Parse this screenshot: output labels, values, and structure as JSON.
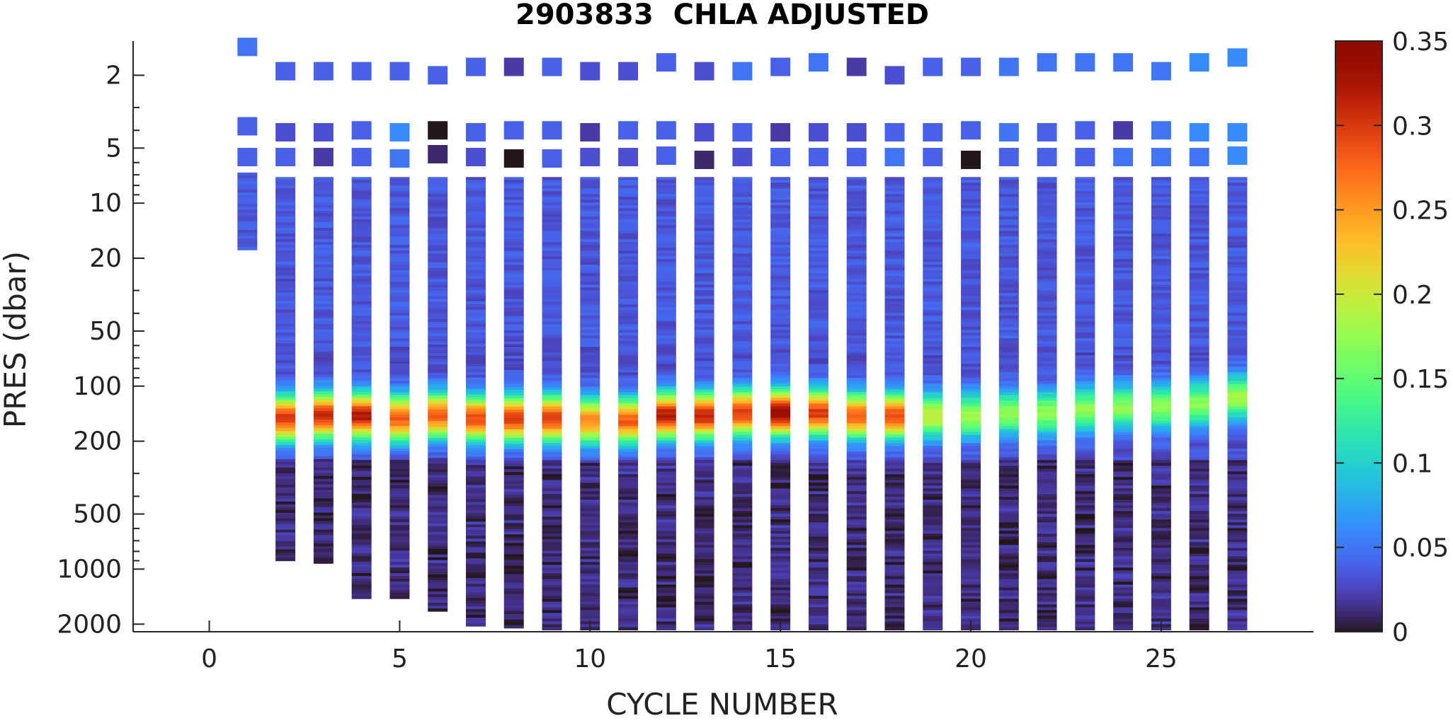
{
  "chart_data": {
    "type": "heatmap",
    "title": "2903833  CHLA ADJUSTED",
    "xlabel": "CYCLE NUMBER",
    "ylabel": "PRES (dbar)",
    "xlim": [
      -2,
      29
    ],
    "ylim": [
      1.3,
      2200
    ],
    "y_scale": "log-reversed",
    "x_ticks": [
      0,
      5,
      10,
      15,
      20,
      25
    ],
    "y_ticks": [
      2,
      5,
      10,
      20,
      50,
      100,
      200,
      500,
      1000,
      2000
    ],
    "colorbar": {
      "range": [
        0,
        0.35
      ],
      "ticks": [
        0,
        0.05,
        0.1,
        0.15,
        0.2,
        0.25,
        0.3,
        0.35
      ],
      "colormap": "turbo"
    },
    "grid": false,
    "cycles": [
      1,
      2,
      3,
      4,
      5,
      6,
      7,
      8,
      9,
      10,
      11,
      12,
      13,
      14,
      15,
      16,
      17,
      18,
      19,
      20,
      21,
      22,
      23,
      24,
      25,
      26,
      27
    ],
    "profile_max_pressure": [
      18,
      900,
      930,
      1450,
      1450,
      1700,
      2050,
      2100,
      2300,
      2300,
      2300,
      2300,
      2300,
      2300,
      2300,
      2300,
      2300,
      2300,
      2300,
      2300,
      2300,
      2300,
      2300,
      2300,
      2300,
      2300,
      2300
    ],
    "surface_samples": [
      {
        "cycle": 1,
        "points": [
          [
            1.4,
            0.05
          ],
          [
            3.8,
            0.04
          ],
          [
            5.6,
            0.04
          ]
        ]
      },
      {
        "cycle": 2,
        "points": [
          [
            1.9,
            0.04
          ],
          [
            4.1,
            0.03
          ],
          [
            5.6,
            0.04
          ]
        ]
      },
      {
        "cycle": 3,
        "points": [
          [
            1.9,
            0.04
          ],
          [
            4.1,
            0.03
          ],
          [
            5.6,
            0.02
          ]
        ]
      },
      {
        "cycle": 4,
        "points": [
          [
            1.9,
            0.04
          ],
          [
            4.0,
            0.04
          ],
          [
            5.6,
            0.04
          ]
        ]
      },
      {
        "cycle": 5,
        "points": [
          [
            1.9,
            0.04
          ],
          [
            4.1,
            0.06
          ],
          [
            5.7,
            0.05
          ]
        ]
      },
      {
        "cycle": 6,
        "points": [
          [
            2.0,
            0.04
          ],
          [
            4.0,
            0.0
          ],
          [
            5.4,
            0.01
          ]
        ]
      },
      {
        "cycle": 7,
        "points": [
          [
            1.8,
            0.04
          ],
          [
            4.1,
            0.04
          ],
          [
            5.6,
            0.03
          ]
        ]
      },
      {
        "cycle": 8,
        "points": [
          [
            1.8,
            0.02
          ],
          [
            4.0,
            0.04
          ],
          [
            5.7,
            0.0
          ]
        ]
      },
      {
        "cycle": 9,
        "points": [
          [
            1.8,
            0.04
          ],
          [
            4.0,
            0.04
          ],
          [
            5.7,
            0.04
          ]
        ]
      },
      {
        "cycle": 10,
        "points": [
          [
            1.9,
            0.03
          ],
          [
            4.1,
            0.02
          ],
          [
            5.6,
            0.03
          ]
        ]
      },
      {
        "cycle": 11,
        "points": [
          [
            1.9,
            0.03
          ],
          [
            4.0,
            0.04
          ],
          [
            5.6,
            0.03
          ]
        ]
      },
      {
        "cycle": 12,
        "points": [
          [
            1.7,
            0.04
          ],
          [
            4.0,
            0.04
          ],
          [
            5.5,
            0.04
          ]
        ]
      },
      {
        "cycle": 13,
        "points": [
          [
            1.9,
            0.03
          ],
          [
            4.1,
            0.03
          ],
          [
            5.8,
            0.01
          ]
        ]
      },
      {
        "cycle": 14,
        "points": [
          [
            1.9,
            0.05
          ],
          [
            4.1,
            0.04
          ],
          [
            5.6,
            0.03
          ]
        ]
      },
      {
        "cycle": 15,
        "points": [
          [
            1.8,
            0.04
          ],
          [
            4.1,
            0.02
          ],
          [
            5.6,
            0.04
          ]
        ]
      },
      {
        "cycle": 16,
        "points": [
          [
            1.7,
            0.05
          ],
          [
            4.1,
            0.03
          ],
          [
            5.6,
            0.04
          ]
        ]
      },
      {
        "cycle": 17,
        "points": [
          [
            1.8,
            0.02
          ],
          [
            4.1,
            0.03
          ],
          [
            5.6,
            0.04
          ]
        ]
      },
      {
        "cycle": 18,
        "points": [
          [
            2.0,
            0.03
          ],
          [
            4.1,
            0.04
          ],
          [
            5.6,
            0.05
          ]
        ]
      },
      {
        "cycle": 19,
        "points": [
          [
            1.8,
            0.04
          ],
          [
            4.1,
            0.04
          ],
          [
            5.6,
            0.04
          ]
        ]
      },
      {
        "cycle": 20,
        "points": [
          [
            1.8,
            0.04
          ],
          [
            4.0,
            0.04
          ],
          [
            5.8,
            0.0
          ]
        ]
      },
      {
        "cycle": 21,
        "points": [
          [
            1.8,
            0.05
          ],
          [
            4.1,
            0.05
          ],
          [
            5.6,
            0.04
          ]
        ]
      },
      {
        "cycle": 22,
        "points": [
          [
            1.7,
            0.05
          ],
          [
            4.1,
            0.04
          ],
          [
            5.6,
            0.04
          ]
        ]
      },
      {
        "cycle": 23,
        "points": [
          [
            1.7,
            0.05
          ],
          [
            4.0,
            0.04
          ],
          [
            5.6,
            0.04
          ]
        ]
      },
      {
        "cycle": 24,
        "points": [
          [
            1.7,
            0.05
          ],
          [
            4.0,
            0.02
          ],
          [
            5.6,
            0.05
          ]
        ]
      },
      {
        "cycle": 25,
        "points": [
          [
            1.9,
            0.05
          ],
          [
            4.0,
            0.05
          ],
          [
            5.6,
            0.05
          ]
        ]
      },
      {
        "cycle": 26,
        "points": [
          [
            1.7,
            0.06
          ],
          [
            4.1,
            0.06
          ],
          [
            5.6,
            0.05
          ]
        ]
      },
      {
        "cycle": 27,
        "points": [
          [
            1.6,
            0.06
          ],
          [
            4.1,
            0.06
          ],
          [
            5.5,
            0.06
          ]
        ]
      }
    ],
    "chl_max_pressure": [
      null,
      150,
      145,
      145,
      150,
      145,
      150,
      150,
      150,
      155,
      155,
      145,
      145,
      140,
      140,
      140,
      145,
      145,
      145,
      145,
      140,
      140,
      135,
      130,
      130,
      125,
      115
    ],
    "chl_max_value": [
      null,
      0.3,
      0.31,
      0.32,
      0.28,
      0.28,
      0.29,
      0.3,
      0.3,
      0.26,
      0.28,
      0.32,
      0.31,
      0.3,
      0.34,
      0.3,
      0.28,
      0.29,
      0.2,
      0.18,
      0.17,
      0.17,
      0.17,
      0.17,
      0.17,
      0.17,
      0.18
    ],
    "background_value": 0.03
  }
}
